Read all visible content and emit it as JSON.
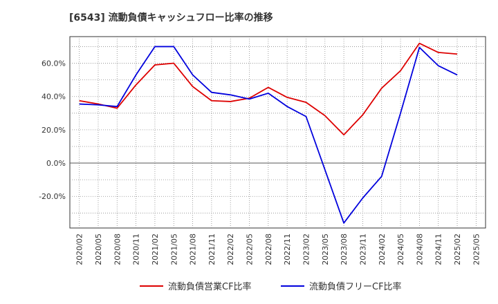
{
  "chart_data": {
    "type": "line",
    "title": "[6543]  流動負債キャッシュフロー比率の推移",
    "xlabel": "",
    "ylabel": "",
    "ylim": [
      -39,
      76
    ],
    "yticks": [
      -20,
      0,
      20,
      40,
      60
    ],
    "ytick_labels": [
      "-20.0%",
      "0.0%",
      "20.0%",
      "40.0%",
      "60.0%"
    ],
    "categories": [
      "2020/02",
      "2020/05",
      "2020/08",
      "2020/11",
      "2021/02",
      "2021/05",
      "2021/08",
      "2021/11",
      "2022/02",
      "2022/05",
      "2022/08",
      "2022/11",
      "2023/02",
      "2023/05",
      "2023/08",
      "2023/11",
      "2024/02",
      "2024/05",
      "2024/08",
      "2024/11",
      "2025/02",
      "2025/05"
    ],
    "grid": true,
    "legend_position": "bottom",
    "series": [
      {
        "name": "流動負債営業CF比率",
        "color": "#dd0000",
        "values": [
          37.5,
          35.5,
          33.0,
          47.0,
          59.0,
          60.0,
          46.0,
          37.5,
          37.0,
          39.0,
          45.5,
          39.5,
          36.5,
          28.5,
          17.0,
          29.0,
          45.0,
          55.5,
          72.0,
          66.5,
          65.5,
          null
        ]
      },
      {
        "name": "流動負債フリーCF比率",
        "color": "#0000dd",
        "values": [
          35.5,
          35.0,
          34.0,
          53.0,
          70.0,
          70.0,
          53.0,
          42.5,
          41.0,
          38.5,
          42.0,
          34.0,
          28.0,
          -4.0,
          -36.0,
          -21.0,
          -8.0,
          30.0,
          69.5,
          58.5,
          53.0,
          null
        ]
      }
    ]
  }
}
